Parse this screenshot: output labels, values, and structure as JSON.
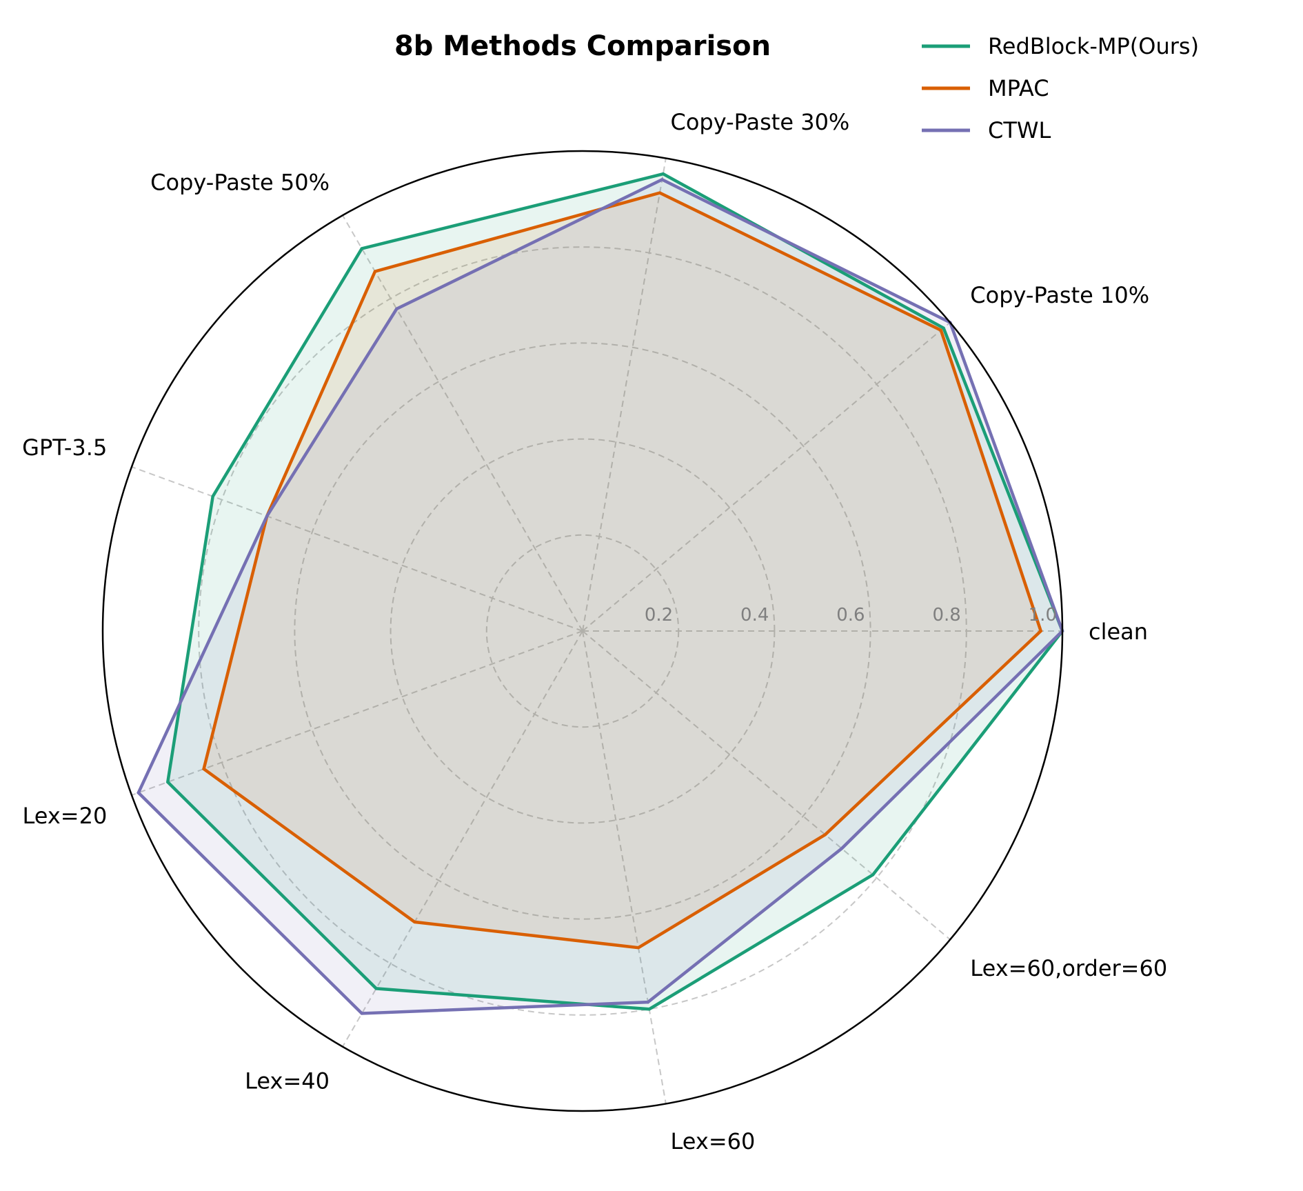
{
  "chart_data": {
    "type": "radar",
    "title": "8b Methods Comparison",
    "axes": [
      "clean",
      "Copy-Paste 10%",
      "Copy-Paste 30%",
      "Copy-Paste 50%",
      "GPT-3.5",
      "Lex=20",
      "Lex=40",
      "Lex=60",
      "Lex=60,order=60"
    ],
    "radial_ticks": [
      "0.2",
      "0.4",
      "0.6",
      "0.8",
      "1.0"
    ],
    "radial_tick_values": [
      0.2,
      0.4,
      0.6,
      0.8,
      1.0
    ],
    "rlim": [
      0,
      1.0
    ],
    "grid": true,
    "legend_position": "top-right",
    "series": [
      {
        "name": "RedBlock-MP(Ours)",
        "color": "#1b9e77",
        "values": [
          1.0,
          0.982,
          0.967,
          0.92,
          0.82,
          0.92,
          0.86,
          0.8,
          0.79
        ]
      },
      {
        "name": "MPAC",
        "color": "#d95f02",
        "values": [
          0.955,
          0.975,
          0.927,
          0.865,
          0.7,
          0.84,
          0.7,
          0.67,
          0.66
        ]
      },
      {
        "name": "CTWL",
        "color": "#7570b3",
        "values": [
          1.0,
          1.0,
          0.955,
          0.775,
          0.7,
          0.985,
          0.92,
          0.785,
          0.705
        ]
      }
    ]
  }
}
